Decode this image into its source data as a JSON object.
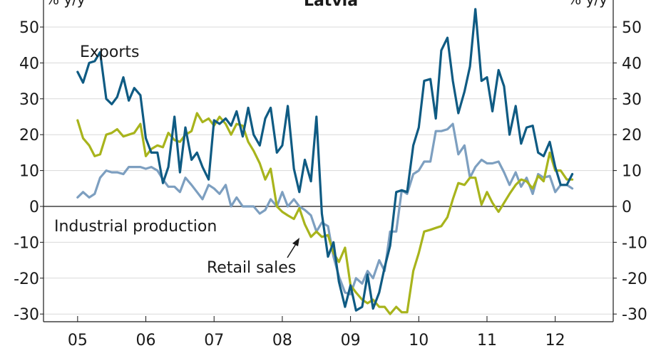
{
  "chart_data": {
    "type": "line",
    "title": "Latvia",
    "y_unit_left": "% y/y",
    "y_unit_right": "% y/y",
    "ylim": [
      -30,
      55
    ],
    "y_ticks": [
      50,
      40,
      30,
      20,
      10,
      0,
      -10,
      -20,
      -30
    ],
    "x_range": [
      2004.5,
      2012.85
    ],
    "x_categories": [
      "05",
      "06",
      "07",
      "08",
      "09",
      "10",
      "11",
      "12"
    ],
    "grid": true,
    "series": [
      {
        "name": "Exports",
        "color": "#0f5b83",
        "x": [
          2005.0,
          2005.08,
          2005.17,
          2005.25,
          2005.33,
          2005.42,
          2005.5,
          2005.58,
          2005.67,
          2005.75,
          2005.83,
          2005.92,
          2006.0,
          2006.08,
          2006.17,
          2006.25,
          2006.33,
          2006.42,
          2006.5,
          2006.58,
          2006.67,
          2006.75,
          2006.83,
          2006.92,
          2007.0,
          2007.08,
          2007.17,
          2007.25,
          2007.33,
          2007.42,
          2007.5,
          2007.58,
          2007.67,
          2007.75,
          2007.83,
          2007.92,
          2008.0,
          2008.08,
          2008.17,
          2008.25,
          2008.33,
          2008.42,
          2008.5,
          2008.58,
          2008.67,
          2008.75,
          2008.83,
          2008.92,
          2009.0,
          2009.08,
          2009.17,
          2009.25,
          2009.33,
          2009.42,
          2009.5,
          2009.58,
          2009.67,
          2009.75,
          2009.83,
          2009.92,
          2010.0,
          2010.08,
          2010.17,
          2010.25,
          2010.33,
          2010.42,
          2010.5,
          2010.58,
          2010.67,
          2010.75,
          2010.83,
          2010.92,
          2011.0,
          2011.08,
          2011.17,
          2011.25,
          2011.33,
          2011.42,
          2011.5,
          2011.58,
          2011.67,
          2011.75,
          2011.83,
          2011.92,
          2012.0,
          2012.08,
          2012.17,
          2012.25
        ],
        "y": [
          37.5,
          34.5,
          40,
          40.5,
          43,
          30,
          28.5,
          30.5,
          36,
          29.5,
          33,
          31,
          19,
          15,
          15,
          6.5,
          11,
          25,
          9.5,
          22,
          13,
          15,
          11,
          7.5,
          24,
          23,
          24.5,
          22.5,
          26.5,
          19.5,
          27.5,
          20,
          17,
          24.5,
          27.5,
          15,
          17,
          28,
          10.5,
          4,
          13,
          7,
          25,
          -2,
          -14,
          -10,
          -21,
          -28,
          -22,
          -29,
          -28,
          -19,
          -28.5,
          -24,
          -17,
          -11,
          4,
          4.5,
          4,
          17,
          22,
          35,
          35.5,
          24.5,
          43.5,
          47,
          35,
          26,
          32,
          39,
          55,
          35,
          36,
          26.5,
          38,
          33.5,
          20,
          28,
          17.5,
          22,
          22.5,
          15,
          14,
          18,
          11,
          6,
          6,
          9
        ]
      },
      {
        "name": "Industrial production",
        "color": "#7d9fc0",
        "x": [
          2005.0,
          2005.08,
          2005.17,
          2005.25,
          2005.33,
          2005.42,
          2005.5,
          2005.58,
          2005.67,
          2005.75,
          2005.83,
          2005.92,
          2006.0,
          2006.08,
          2006.17,
          2006.25,
          2006.33,
          2006.42,
          2006.5,
          2006.58,
          2006.67,
          2006.75,
          2006.83,
          2006.92,
          2007.0,
          2007.08,
          2007.17,
          2007.25,
          2007.33,
          2007.42,
          2007.5,
          2007.58,
          2007.67,
          2007.75,
          2007.83,
          2007.92,
          2008.0,
          2008.08,
          2008.17,
          2008.25,
          2008.33,
          2008.42,
          2008.5,
          2008.58,
          2008.67,
          2008.75,
          2008.83,
          2008.92,
          2009.0,
          2009.08,
          2009.17,
          2009.25,
          2009.33,
          2009.42,
          2009.5,
          2009.58,
          2009.67,
          2009.75,
          2009.83,
          2009.92,
          2010.0,
          2010.08,
          2010.17,
          2010.25,
          2010.33,
          2010.42,
          2010.5,
          2010.58,
          2010.67,
          2010.75,
          2010.83,
          2010.92,
          2011.0,
          2011.08,
          2011.17,
          2011.25,
          2011.33,
          2011.42,
          2011.5,
          2011.58,
          2011.67,
          2011.75,
          2011.83,
          2011.92,
          2012.0,
          2012.08,
          2012.17,
          2012.25
        ],
        "y": [
          2.5,
          4,
          2.5,
          3.5,
          8,
          10,
          9.5,
          9.5,
          9,
          11,
          11,
          11,
          10.5,
          11,
          10,
          7.5,
          5.5,
          5.5,
          4,
          8,
          6,
          4,
          2,
          6,
          5,
          3.5,
          6,
          0,
          2.5,
          0,
          0,
          0,
          -2,
          -1,
          2,
          0,
          4,
          0,
          2,
          0,
          -1,
          -2.5,
          -7,
          -4.5,
          -5.5,
          -14,
          -19.5,
          -24,
          -24.5,
          -20,
          -21.5,
          -18,
          -20,
          -15,
          -18,
          -7,
          -7,
          4.5,
          3.5,
          9,
          10,
          12.5,
          12.5,
          21,
          21,
          21.5,
          23,
          14.5,
          17,
          8,
          11,
          13,
          12,
          12,
          12.5,
          9.5,
          6,
          9.5,
          5.5,
          8,
          3.5,
          9,
          8,
          8.5,
          4,
          6,
          6,
          5
        ]
      },
      {
        "name": "Retail sales",
        "color": "#a8b41c",
        "x": [
          2005.0,
          2005.08,
          2005.17,
          2005.25,
          2005.33,
          2005.42,
          2005.5,
          2005.58,
          2005.67,
          2005.75,
          2005.83,
          2005.92,
          2006.0,
          2006.08,
          2006.17,
          2006.25,
          2006.33,
          2006.42,
          2006.5,
          2006.58,
          2006.67,
          2006.75,
          2006.83,
          2006.92,
          2007.0,
          2007.08,
          2007.17,
          2007.25,
          2007.33,
          2007.42,
          2007.5,
          2007.58,
          2007.67,
          2007.75,
          2007.83,
          2007.92,
          2008.0,
          2008.08,
          2008.17,
          2008.25,
          2008.33,
          2008.42,
          2008.5,
          2008.58,
          2008.67,
          2008.75,
          2008.83,
          2008.92,
          2009.0,
          2009.08,
          2009.17,
          2009.25,
          2009.33,
          2009.42,
          2009.5,
          2009.58,
          2009.67,
          2009.75,
          2009.83,
          2009.92,
          2010.0,
          2010.08,
          2010.17,
          2010.25,
          2010.33,
          2010.42,
          2010.5,
          2010.58,
          2010.67,
          2010.75,
          2010.83,
          2010.92,
          2011.0,
          2011.08,
          2011.17,
          2011.25,
          2011.33,
          2011.42,
          2011.5,
          2011.58,
          2011.67,
          2011.75,
          2011.83,
          2011.92,
          2012.0,
          2012.08,
          2012.17,
          2012.25
        ],
        "y": [
          24,
          19,
          17,
          14,
          14.5,
          20,
          20.5,
          21.5,
          19.5,
          20,
          20.5,
          23,
          14,
          16,
          17,
          16.5,
          20.5,
          18.5,
          18,
          20,
          21,
          26,
          23.5,
          24.5,
          22.5,
          25,
          23,
          20,
          23,
          22.5,
          18,
          15.5,
          12,
          7.5,
          10.5,
          0,
          -1.5,
          -2.5,
          -3.5,
          -0.5,
          -5,
          -8.5,
          -7,
          -8.5,
          -8,
          -13,
          -15.5,
          -11.5,
          -22,
          -24,
          -26,
          -27,
          -26,
          -28,
          -28,
          -30,
          -28,
          -29.5,
          -29.5,
          -18,
          -13,
          -7,
          -6.5,
          -6,
          -5.5,
          -3,
          2,
          6.5,
          6,
          8,
          8,
          0.5,
          4,
          1,
          -1.5,
          1,
          3.5,
          6,
          7.5,
          7,
          5,
          8.5,
          7,
          15,
          10,
          10,
          7.5,
          7.5
        ]
      }
    ],
    "annotations": {
      "exports_label": "Exports",
      "industrial_label": "Industrial production",
      "retail_label": "Retail sales"
    }
  }
}
